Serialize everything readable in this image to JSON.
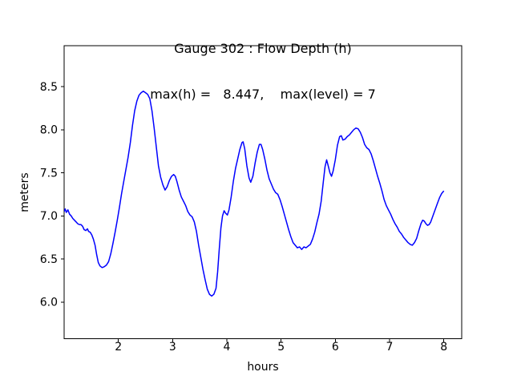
{
  "figure": {
    "title_line1": "Gauge 302 : Flow Depth (h)",
    "title_line2": "max(h) =   8.447,    max(level) = 7",
    "background": "#ffffff",
    "text_color": "#000000"
  },
  "chart_data": {
    "type": "line",
    "title": "Gauge 302 : Flow Depth (h)",
    "subtitle": "max(h) =   8.447,    max(level) = 7",
    "xlabel": "hours",
    "ylabel": "meters",
    "xlim": [
      1.0,
      8.33
    ],
    "ylim": [
      5.575,
      8.975
    ],
    "xticks": [
      2,
      3,
      4,
      5,
      6,
      7,
      8
    ],
    "yticks": [
      6.0,
      6.5,
      7.0,
      7.5,
      8.0,
      8.5
    ],
    "grid": false,
    "legend": "none",
    "line_color": "#0000ff",
    "annotations": {
      "max_h": 8.447,
      "max_level": 7
    },
    "series": [
      {
        "name": "h (flow depth)",
        "x": [
          1.0,
          1.02,
          1.04,
          1.07,
          1.1,
          1.13,
          1.16,
          1.19,
          1.22,
          1.25,
          1.28,
          1.31,
          1.34,
          1.37,
          1.4,
          1.43,
          1.45,
          1.48,
          1.51,
          1.54,
          1.57,
          1.6,
          1.63,
          1.66,
          1.7,
          1.74,
          1.78,
          1.82,
          1.86,
          1.9,
          1.94,
          1.98,
          2.02,
          2.06,
          2.1,
          2.14,
          2.18,
          2.22,
          2.26,
          2.3,
          2.34,
          2.38,
          2.42,
          2.46,
          2.5,
          2.54,
          2.58,
          2.62,
          2.66,
          2.7,
          2.74,
          2.78,
          2.82,
          2.86,
          2.9,
          2.94,
          2.98,
          3.02,
          3.05,
          3.08,
          3.12,
          3.16,
          3.2,
          3.24,
          3.28,
          3.32,
          3.36,
          3.4,
          3.44,
          3.48,
          3.52,
          3.56,
          3.6,
          3.64,
          3.68,
          3.72,
          3.76,
          3.8,
          3.83,
          3.86,
          3.89,
          3.92,
          3.95,
          3.98,
          4.01,
          4.04,
          4.08,
          4.12,
          4.16,
          4.2,
          4.24,
          4.28,
          4.3,
          4.33,
          4.37,
          4.41,
          4.44,
          4.48,
          4.52,
          4.56,
          4.6,
          4.63,
          4.66,
          4.7,
          4.74,
          4.78,
          4.82,
          4.86,
          4.9,
          4.94,
          4.98,
          5.02,
          5.06,
          5.1,
          5.14,
          5.18,
          5.22,
          5.26,
          5.3,
          5.34,
          5.38,
          5.42,
          5.46,
          5.5,
          5.54,
          5.58,
          5.62,
          5.66,
          5.7,
          5.74,
          5.78,
          5.81,
          5.84,
          5.87,
          5.9,
          5.93,
          5.96,
          6.0,
          6.04,
          6.08,
          6.11,
          6.14,
          6.18,
          6.22,
          6.26,
          6.3,
          6.34,
          6.38,
          6.42,
          6.46,
          6.5,
          6.54,
          6.58,
          6.62,
          6.66,
          6.7,
          6.74,
          6.78,
          6.82,
          6.86,
          6.9,
          6.94,
          6.98,
          7.02,
          7.06,
          7.1,
          7.14,
          7.18,
          7.22,
          7.26,
          7.3,
          7.34,
          7.38,
          7.42,
          7.46,
          7.5,
          7.54,
          7.58,
          7.61,
          7.64,
          7.67,
          7.7,
          7.73,
          7.76,
          7.8,
          7.84,
          7.88,
          7.92,
          7.96,
          8.0
        ],
        "y": [
          7.05,
          7.08,
          7.04,
          7.07,
          7.02,
          7.0,
          6.97,
          6.95,
          6.93,
          6.91,
          6.9,
          6.9,
          6.88,
          6.84,
          6.83,
          6.85,
          6.82,
          6.81,
          6.78,
          6.73,
          6.66,
          6.55,
          6.46,
          6.42,
          6.4,
          6.41,
          6.43,
          6.47,
          6.56,
          6.68,
          6.81,
          6.95,
          7.1,
          7.26,
          7.4,
          7.54,
          7.68,
          7.85,
          8.05,
          8.22,
          8.33,
          8.4,
          8.43,
          8.447,
          8.43,
          8.41,
          8.36,
          8.22,
          8.02,
          7.8,
          7.58,
          7.45,
          7.36,
          7.3,
          7.34,
          7.41,
          7.46,
          7.48,
          7.46,
          7.4,
          7.3,
          7.22,
          7.17,
          7.12,
          7.05,
          7.01,
          6.99,
          6.93,
          6.82,
          6.66,
          6.52,
          6.38,
          6.26,
          6.15,
          6.09,
          6.07,
          6.09,
          6.16,
          6.35,
          6.61,
          6.86,
          7.0,
          7.06,
          7.03,
          7.01,
          7.07,
          7.22,
          7.4,
          7.55,
          7.66,
          7.77,
          7.85,
          7.86,
          7.78,
          7.58,
          7.44,
          7.39,
          7.46,
          7.61,
          7.74,
          7.83,
          7.83,
          7.77,
          7.66,
          7.53,
          7.43,
          7.37,
          7.31,
          7.27,
          7.25,
          7.19,
          7.11,
          7.02,
          6.93,
          6.84,
          6.76,
          6.69,
          6.66,
          6.63,
          6.64,
          6.61,
          6.64,
          6.63,
          6.65,
          6.67,
          6.73,
          6.81,
          6.92,
          7.02,
          7.17,
          7.4,
          7.57,
          7.65,
          7.58,
          7.5,
          7.46,
          7.52,
          7.65,
          7.82,
          7.92,
          7.93,
          7.88,
          7.89,
          7.92,
          7.94,
          7.97,
          8.0,
          8.02,
          8.01,
          7.97,
          7.91,
          7.83,
          7.79,
          7.77,
          7.72,
          7.64,
          7.55,
          7.46,
          7.38,
          7.29,
          7.19,
          7.12,
          7.07,
          7.02,
          6.96,
          6.91,
          6.87,
          6.82,
          6.79,
          6.75,
          6.72,
          6.69,
          6.67,
          6.66,
          6.69,
          6.74,
          6.83,
          6.91,
          6.95,
          6.94,
          6.91,
          6.89,
          6.9,
          6.93,
          7.0,
          7.07,
          7.14,
          7.21,
          7.26,
          7.29
        ]
      }
    ]
  }
}
